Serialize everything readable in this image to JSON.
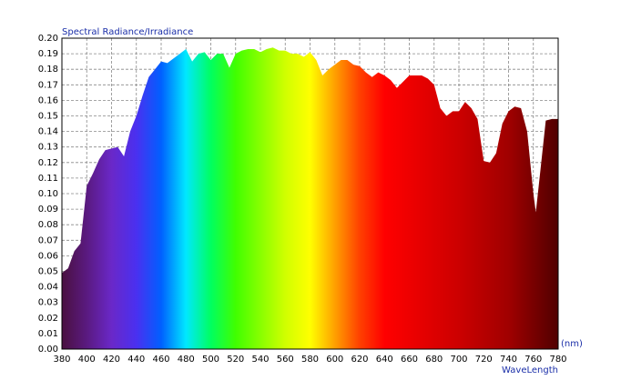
{
  "chart_data": {
    "type": "area",
    "ylabel": "Spectral Radiance/Irradiance",
    "xunit": "(nm)",
    "xlabel": "WaveLength",
    "x": [
      380,
      385,
      390,
      395,
      400,
      405,
      410,
      415,
      420,
      425,
      430,
      435,
      440,
      445,
      450,
      455,
      460,
      465,
      470,
      475,
      480,
      485,
      490,
      495,
      500,
      505,
      510,
      515,
      520,
      525,
      530,
      535,
      540,
      545,
      550,
      555,
      560,
      565,
      570,
      575,
      580,
      585,
      590,
      595,
      600,
      605,
      610,
      615,
      620,
      625,
      630,
      635,
      640,
      645,
      650,
      655,
      660,
      665,
      670,
      675,
      680,
      685,
      690,
      695,
      700,
      705,
      710,
      715,
      720,
      725,
      730,
      735,
      740,
      745,
      750,
      755,
      760,
      762,
      765,
      770,
      775,
      780
    ],
    "values": [
      0.049,
      0.052,
      0.063,
      0.068,
      0.105,
      0.113,
      0.122,
      0.128,
      0.129,
      0.13,
      0.124,
      0.14,
      0.15,
      0.163,
      0.175,
      0.18,
      0.185,
      0.184,
      0.187,
      0.19,
      0.193,
      0.185,
      0.19,
      0.191,
      0.186,
      0.19,
      0.19,
      0.181,
      0.19,
      0.192,
      0.193,
      0.193,
      0.191,
      0.193,
      0.194,
      0.192,
      0.192,
      0.19,
      0.19,
      0.188,
      0.191,
      0.186,
      0.176,
      0.18,
      0.183,
      0.186,
      0.186,
      0.183,
      0.182,
      0.178,
      0.175,
      0.178,
      0.176,
      0.173,
      0.168,
      0.172,
      0.176,
      0.176,
      0.176,
      0.174,
      0.17,
      0.155,
      0.15,
      0.153,
      0.153,
      0.159,
      0.155,
      0.148,
      0.121,
      0.12,
      0.126,
      0.145,
      0.153,
      0.156,
      0.155,
      0.14,
      0.1,
      0.088,
      0.11,
      0.147,
      0.148,
      0.148
    ],
    "xlim": [
      380,
      780
    ],
    "xticks": [
      380,
      400,
      420,
      440,
      460,
      480,
      500,
      520,
      540,
      560,
      580,
      600,
      620,
      640,
      660,
      680,
      700,
      720,
      740,
      760,
      780
    ],
    "ylim": [
      0,
      0.2
    ],
    "yticks": [
      {
        "value": 0,
        "label": "0.00"
      },
      {
        "value": 0.01,
        "label": "0.01"
      },
      {
        "value": 0.02,
        "label": "0.02"
      },
      {
        "value": 0.03,
        "label": "0.03"
      },
      {
        "value": 0.04,
        "label": "0.04"
      },
      {
        "value": 0.05,
        "label": "0.05"
      },
      {
        "value": 0.06,
        "label": "0.06"
      },
      {
        "value": 0.07,
        "label": "0.07"
      },
      {
        "value": 0.08,
        "label": "0.08"
      },
      {
        "value": 0.09,
        "label": "0.09"
      },
      {
        "value": 0.1,
        "label": "0.10"
      },
      {
        "value": 0.11,
        "label": "0.11"
      },
      {
        "value": 0.12,
        "label": "0.12"
      },
      {
        "value": 0.13,
        "label": "0.13"
      },
      {
        "value": 0.14,
        "label": "0.14"
      },
      {
        "value": 0.15,
        "label": "0.15"
      },
      {
        "value": 0.16,
        "label": "0.16"
      },
      {
        "value": 0.17,
        "label": "0.17"
      },
      {
        "value": 0.18,
        "label": "0.18"
      },
      {
        "value": 0.19,
        "label": "0.19"
      },
      {
        "value": 0.2,
        "label": "0.20"
      }
    ],
    "grid": true
  }
}
